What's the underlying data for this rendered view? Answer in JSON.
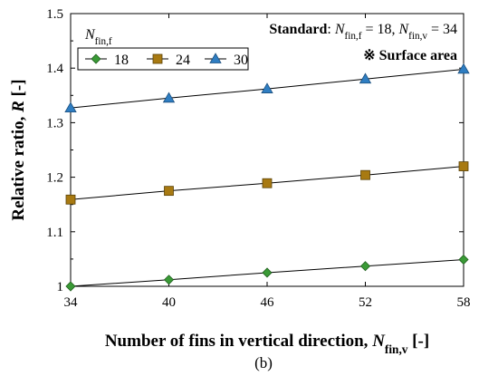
{
  "chart_data": {
    "type": "line",
    "x": [
      34,
      40,
      46,
      52,
      58
    ],
    "xlim": [
      34,
      58
    ],
    "ylim": [
      1.0,
      1.5
    ],
    "x_ticks": [
      "34",
      "40",
      "46",
      "52",
      "58"
    ],
    "y_ticks": [
      "1",
      "1.1",
      "1.2",
      "1.3",
      "1.4",
      "1.5"
    ],
    "xlabel": "Number of fins in vertical direction, N_fin,v [-]",
    "ylabel": "Relative ratio, R [-]",
    "grid": false,
    "legend": {
      "title": "N_fin,f",
      "placement": "top-left"
    },
    "series": [
      {
        "name": "18",
        "marker": "diamond",
        "color": "#3a9a36",
        "values": [
          1.0,
          1.012,
          1.025,
          1.037,
          1.049
        ]
      },
      {
        "name": "24",
        "marker": "square",
        "color": "#a87a12",
        "values": [
          1.159,
          1.175,
          1.189,
          1.204,
          1.22
        ]
      },
      {
        "name": "30",
        "marker": "triangle",
        "color": "#2f7ec2",
        "values": [
          1.327,
          1.345,
          1.362,
          1.38,
          1.398
        ]
      }
    ],
    "annotations": {
      "standard_label": "Standard",
      "standard_text": ": N_fin,f = 18, N_fin,v = 34",
      "surface_area": "※ Surface area"
    }
  },
  "panel_label": "(b)"
}
